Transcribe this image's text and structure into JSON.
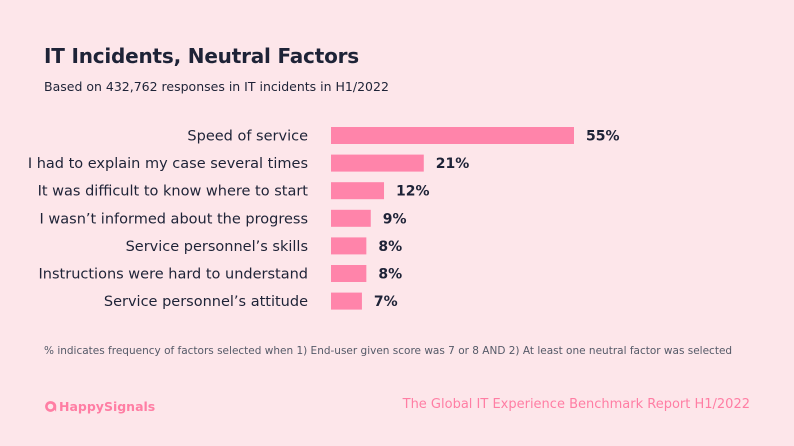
{
  "header": {
    "title": "IT Incidents, Neutral Factors",
    "subtitle": "Based on 432,762 responses in IT incidents in H1/2022"
  },
  "chart_data": {
    "type": "bar",
    "orientation": "horizontal",
    "title": "IT Incidents, Neutral Factors",
    "categories": [
      "Speed of service",
      "I had to explain my case several times",
      "It was difficult to know where to start",
      "I wasn’t informed about the progress",
      "Service personnel’s skills",
      "Instructions were hard to understand",
      "Service personnel’s attitude"
    ],
    "values": [
      55,
      21,
      12,
      9,
      8,
      8,
      7
    ],
    "value_labels": [
      "55%",
      "21%",
      "12%",
      "9%",
      "8%",
      "8%",
      "7%"
    ],
    "unit": "%",
    "xlim": [
      0,
      55
    ],
    "xlabel": "",
    "ylabel": "",
    "grid": false,
    "bar_color": "#ff84aa"
  },
  "footnote": "% indicates frequency of factors selected when 1) End-user given score was 7 or 8 AND 2) At least one neutral factor was selected",
  "brand": {
    "name": "HappySignals",
    "icon": "happysignals-logo-icon",
    "color": "#ff7ea4"
  },
  "report_title": "The Global IT Experience Benchmark Report H1/2022"
}
